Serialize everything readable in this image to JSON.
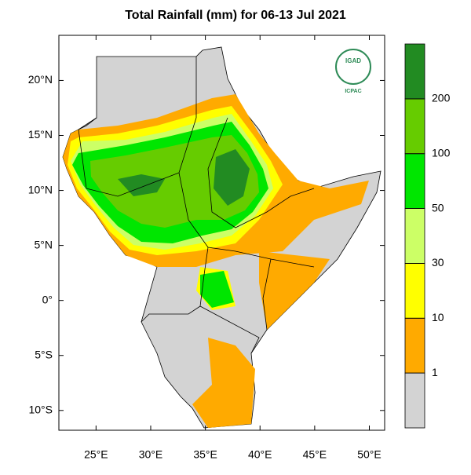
{
  "title": "Total Rainfall (mm) for 06-13 Jul 2021",
  "map": {
    "xlim": [
      21.6,
      51.4
    ],
    "ylim": [
      -11.8,
      24.1
    ],
    "xticks": [
      {
        "value": 25,
        "label": "25°E"
      },
      {
        "value": 30,
        "label": "30°E"
      },
      {
        "value": 35,
        "label": "35°E"
      },
      {
        "value": 40,
        "label": "40°E"
      },
      {
        "value": 45,
        "label": "45°E"
      },
      {
        "value": 50,
        "label": "50°E"
      }
    ],
    "yticks": [
      {
        "value": 20,
        "label": "20°N"
      },
      {
        "value": 15,
        "label": "15°N"
      },
      {
        "value": 10,
        "label": "10°N"
      },
      {
        "value": 5,
        "label": "5°N"
      },
      {
        "value": 0,
        "label": "0°"
      },
      {
        "value": -5,
        "label": "5°S"
      },
      {
        "value": -10,
        "label": "10°S"
      }
    ]
  },
  "colorbar": {
    "levels": [
      1,
      10,
      30,
      50,
      100,
      200
    ],
    "colors": [
      "#d3d3d3",
      "#ffaa00",
      "#ffff00",
      "#ccff66",
      "#00e600",
      "#66cc00",
      "#228b22"
    ]
  },
  "logo": {
    "name": "IGAD",
    "subtitle": "ICPAC"
  }
}
